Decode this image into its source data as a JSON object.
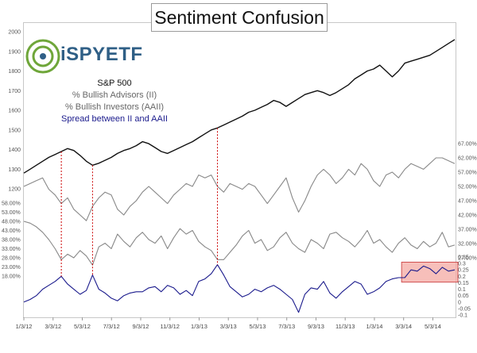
{
  "chart_data": {
    "type": "line",
    "title": "Sentiment Confusion",
    "logo_text": "iSPYETF",
    "x_tick_labels": [
      "1/3/12",
      "3/3/12",
      "5/3/12",
      "7/3/12",
      "9/3/12",
      "11/3/12",
      "1/3/13",
      "3/3/13",
      "5/3/13",
      "7/3/13",
      "9/3/13",
      "11/3/13",
      "1/3/14",
      "3/3/14",
      "5/3/14"
    ],
    "legend": [
      {
        "label": "S&P 500",
        "color": "#111111"
      },
      {
        "label": "% Bullish Advisors (II)",
        "color": "#888888"
      },
      {
        "label": "% Bullish Investors (AAII)",
        "color": "#888888"
      },
      {
        "label": "Spread between II and AAII",
        "color": "#1a1a8c"
      }
    ],
    "axes": {
      "sp500": {
        "ticks": [
          "2000",
          "1900",
          "1800",
          "1700",
          "1600",
          "1500",
          "1400",
          "1300",
          "1200"
        ],
        "ylim": [
          1200,
          2000
        ]
      },
      "ii": {
        "ticks": [
          "67.00%",
          "62.00%",
          "57.00%",
          "52.00%",
          "47.00%",
          "42.00%",
          "37.00%",
          "32.00%",
          "27.00%"
        ],
        "ylim": [
          27,
          67
        ]
      },
      "aaii": {
        "ticks": [
          "58.00%",
          "53.00%",
          "48.00%",
          "43.00%",
          "38.00%",
          "33.00%",
          "28.00%",
          "23.00%",
          "18.00%"
        ],
        "ylim": [
          18,
          58
        ]
      },
      "spread": {
        "ticks": [
          "0.35",
          "0.3",
          "0.25",
          "0.2",
          "0.15",
          "0.1",
          "0.05",
          "0",
          "-0.05",
          "-0.1"
        ],
        "ylim": [
          -0.1,
          0.35
        ]
      }
    },
    "series": [
      {
        "name": "S&P 500",
        "color": "#111111",
        "values": [
          1280,
          1300,
          1320,
          1340,
          1360,
          1375,
          1390,
          1405,
          1395,
          1370,
          1340,
          1320,
          1330,
          1345,
          1360,
          1380,
          1395,
          1405,
          1420,
          1440,
          1430,
          1410,
          1390,
          1380,
          1395,
          1410,
          1425,
          1440,
          1460,
          1480,
          1500,
          1510,
          1525,
          1540,
          1555,
          1570,
          1590,
          1600,
          1615,
          1630,
          1650,
          1640,
          1620,
          1640,
          1660,
          1680,
          1690,
          1700,
          1690,
          1675,
          1690,
          1710,
          1730,
          1760,
          1780,
          1800,
          1810,
          1830,
          1800,
          1770,
          1800,
          1840,
          1850,
          1860,
          1870,
          1880,
          1900,
          1920,
          1940,
          1960
        ]
      },
      {
        "name": "% Bullish Advisors (II)",
        "color": "#888888",
        "values": [
          52,
          53,
          54,
          55,
          51,
          49,
          46,
          48,
          44,
          42,
          40,
          45,
          48,
          50,
          49,
          44,
          42,
          45,
          47,
          50,
          52,
          50,
          48,
          46,
          49,
          51,
          53,
          52,
          56,
          55,
          56,
          52,
          50,
          53,
          52,
          51,
          53,
          52,
          49,
          46,
          49,
          52,
          55,
          48,
          43,
          47,
          52,
          56,
          58,
          56,
          53,
          55,
          58,
          56,
          60,
          58,
          54,
          52,
          56,
          57,
          55,
          58,
          60,
          59,
          58,
          60,
          62,
          62,
          61,
          60
        ]
      },
      {
        "name": "% Bullish Investors (AAII)",
        "color": "#888888",
        "values": [
          48,
          47,
          45,
          42,
          38,
          33,
          27,
          30,
          28,
          32,
          29,
          24,
          34,
          36,
          33,
          41,
          37,
          34,
          39,
          42,
          38,
          36,
          40,
          33,
          39,
          44,
          41,
          43,
          37,
          34,
          32,
          27,
          27,
          31,
          35,
          40,
          43,
          36,
          38,
          32,
          34,
          39,
          42,
          36,
          33,
          31,
          38,
          36,
          33,
          41,
          42,
          39,
          37,
          34,
          38,
          43,
          36,
          38,
          34,
          31,
          36,
          39,
          35,
          33,
          37,
          34,
          36,
          42,
          34,
          35
        ]
      },
      {
        "name": "Spread between II and AAII",
        "color": "#1a1a8c",
        "values": [
          0.0,
          0.02,
          0.05,
          0.1,
          0.13,
          0.16,
          0.2,
          0.14,
          0.1,
          0.06,
          0.09,
          0.21,
          0.1,
          0.07,
          0.03,
          0.01,
          0.05,
          0.07,
          0.08,
          0.08,
          0.11,
          0.12,
          0.08,
          0.13,
          0.11,
          0.06,
          0.09,
          0.05,
          0.16,
          0.18,
          0.22,
          0.29,
          0.21,
          0.12,
          0.08,
          0.04,
          0.06,
          0.1,
          0.08,
          0.11,
          0.13,
          0.1,
          0.06,
          0.02,
          -0.08,
          0.06,
          0.11,
          0.1,
          0.16,
          0.07,
          0.03,
          0.08,
          0.12,
          0.16,
          0.14,
          0.06,
          0.08,
          0.11,
          0.16,
          0.18,
          0.19,
          0.19,
          0.25,
          0.24,
          0.28,
          0.26,
          0.22,
          0.27,
          0.24,
          0.25
        ]
      }
    ],
    "annotations": [
      {
        "type": "dashed-vertical",
        "color": "#cc0000",
        "x_index": 6
      },
      {
        "type": "dashed-vertical",
        "color": "#cc0000",
        "x_index": 11
      },
      {
        "type": "dashed-vertical",
        "color": "#cc0000",
        "x_index": 31
      },
      {
        "type": "highlight-box",
        "color": "#f4a9a3",
        "x_index_range": [
          61,
          69
        ],
        "spread_range": [
          0.155,
          0.31
        ]
      }
    ]
  }
}
